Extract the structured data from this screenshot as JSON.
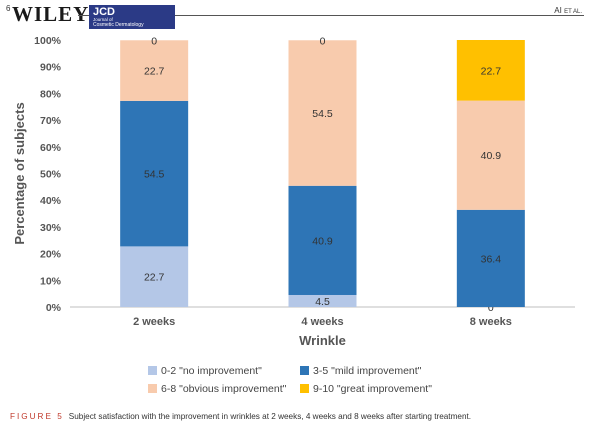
{
  "header": {
    "page_number": "6",
    "publisher": "WILEY",
    "journal_abbr": "JCD",
    "journal_line1": "Journal of",
    "journal_line2": "Cosmetic Dermatology",
    "authors": "AI",
    "authors_suffix": "ET AL.",
    "logo_color": "#2b3a86"
  },
  "caption": {
    "label": "FIGURE 5",
    "text": "Subject satisfaction with the improvement in wrinkles at 2 weeks, 4 weeks and 8 weeks after starting treatment."
  },
  "chart_data": {
    "type": "bar",
    "stacked": true,
    "xlabel": "Wrinkle",
    "ylabel": "Percentage of subjects",
    "ylim": [
      0,
      100
    ],
    "y_ticks": [
      "0%",
      "10%",
      "20%",
      "30%",
      "40%",
      "50%",
      "60%",
      "70%",
      "80%",
      "90%",
      "100%"
    ],
    "grid": false,
    "legend_position": "bottom",
    "categories": [
      "2 weeks",
      "4 weeks",
      "8 weeks"
    ],
    "series": [
      {
        "name": "0-2 \"no improvement\"",
        "color": "#b4c7e7",
        "values": [
          22.7,
          4.5,
          0
        ],
        "labels": [
          "22.7",
          "4.5",
          "0"
        ]
      },
      {
        "name": "3-5 \"mild improvement\"",
        "color": "#2e75b6",
        "values": [
          54.5,
          40.9,
          36.4
        ],
        "labels": [
          "54.5",
          "40.9",
          "36.4"
        ]
      },
      {
        "name": "6-8 \"obvious improvement\"",
        "color": "#f8cbad",
        "values": [
          22.7,
          54.5,
          40.9
        ],
        "labels": [
          "22.7",
          "54.5",
          "40.9"
        ]
      },
      {
        "name": "9-10 \"great improvement\"",
        "color": "#ffc000",
        "values": [
          0,
          0,
          22.7
        ],
        "labels": [
          "0",
          "0",
          "22.7"
        ]
      }
    ]
  }
}
